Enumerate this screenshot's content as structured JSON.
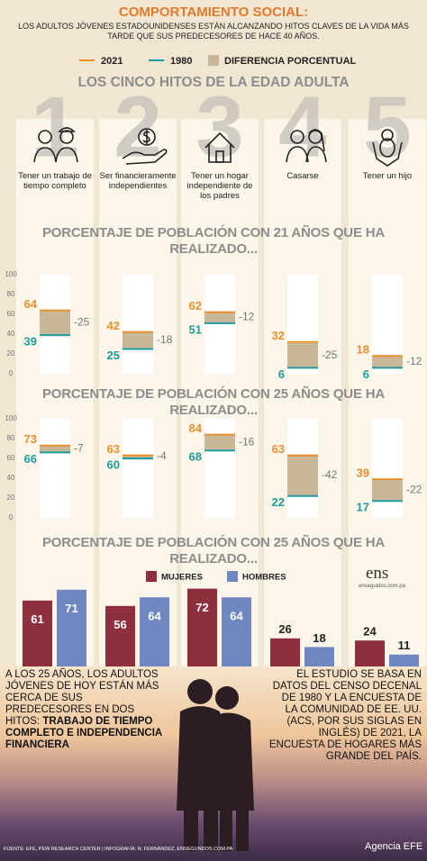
{
  "header": {
    "title": "COMPORTAMIENTO SOCIAL:",
    "subtitle": "LOS ADULTOS JÓVENES ESTADOUNIDENSES ESTÁN ALCANZANDO HITOS CLAVES DE LA VIDA MÁS TARDE QUE SUS PREDECESORES DE HACE 40 AÑOS."
  },
  "section_title": "LOS CINCO HITOS DE LA EDAD ADULTA",
  "milestones": [
    {
      "number": "1",
      "label": "Tener un trabajo de tiempo completo"
    },
    {
      "number": "2",
      "label": "Ser financieramente independientes"
    },
    {
      "number": "3",
      "label": "Tener un hogar independiente de los padres"
    },
    {
      "number": "4",
      "label": "Casarse"
    },
    {
      "number": "5",
      "label": "Tener un hijo"
    }
  ],
  "chart_data": [
    {
      "type": "range",
      "title": "PORCENTAJE DE POBLACIÓN CON 21 AÑOS QUE HA REALIZADO...",
      "ylim": [
        0,
        100
      ],
      "yticks": [
        0,
        20,
        40,
        60,
        80,
        100
      ],
      "series": [
        {
          "name": "2021",
          "color": "#e8912d",
          "values": [
            64,
            42,
            62,
            32,
            18
          ]
        },
        {
          "name": "1980",
          "color": "#1c9c9c",
          "values": [
            39,
            25,
            51,
            6,
            6
          ]
        }
      ],
      "difference": {
        "name": "DIFERENCIA PORCENTUAL",
        "color": "#c8b899",
        "values": [
          -25,
          -18,
          -12,
          -25,
          -12
        ]
      }
    },
    {
      "type": "range",
      "title": "PORCENTAJE DE POBLACIÓN CON 25 AÑOS QUE HA REALIZADO...",
      "ylim": [
        0,
        100
      ],
      "yticks": [
        0,
        20,
        40,
        60,
        80,
        100
      ],
      "series": [
        {
          "color": "#e8912d",
          "values": [
            73,
            63,
            84,
            63,
            39
          ]
        },
        {
          "color": "#1c9c9c",
          "values": [
            66,
            60,
            68,
            22,
            17
          ]
        }
      ],
      "difference": {
        "color": "#c8b899",
        "values": [
          -7,
          -4,
          -16,
          -42,
          -22
        ]
      }
    },
    {
      "type": "bar",
      "title": "PORCENTAJE DE POBLACIÓN CON 25 AÑOS QUE HA REALIZADO...",
      "ylim": [
        0,
        100
      ],
      "series": [
        {
          "name": "MUJERES",
          "color": "#8e2f3e",
          "values": [
            61,
            56,
            72,
            26,
            24
          ]
        },
        {
          "name": "HOMBRES",
          "color": "#7088c2",
          "values": [
            71,
            64,
            64,
            18,
            11
          ]
        }
      ]
    }
  ],
  "brand": {
    "name": "ens",
    "url": "enseguidos.com.pa"
  },
  "notes": {
    "left": "A LOS 25 AÑOS, LOS ADULTOS JÓVENES DE HOY ESTÁN MÁS CERCA DE SUS PREDECESORES EN DOS HITOS:",
    "left_bold": "TRABAJO DE TIEMPO COMPLETO E INDEPENDENCIA FINANCIERA",
    "right": "EL ESTUDIO SE BASA EN DATOS DEL CENSO DECENAL DE 1980 Y LA ENCUESTA DE LA COMUNIDAD DE EE. UU. (ACS, POR SUS SIGLAS EN INGLÉS) DE 2021, LA ENCUESTA DE HOGARES MÁS GRANDE DEL PAÍS."
  },
  "footer": {
    "source": "FUENTE: EFE, PEW RESEARCH CENTER | INFOGRAFÍA: N. FERNÁNDEZ, ENSEGUNDOS.COM.PA",
    "credit": "Agencia EFE"
  }
}
